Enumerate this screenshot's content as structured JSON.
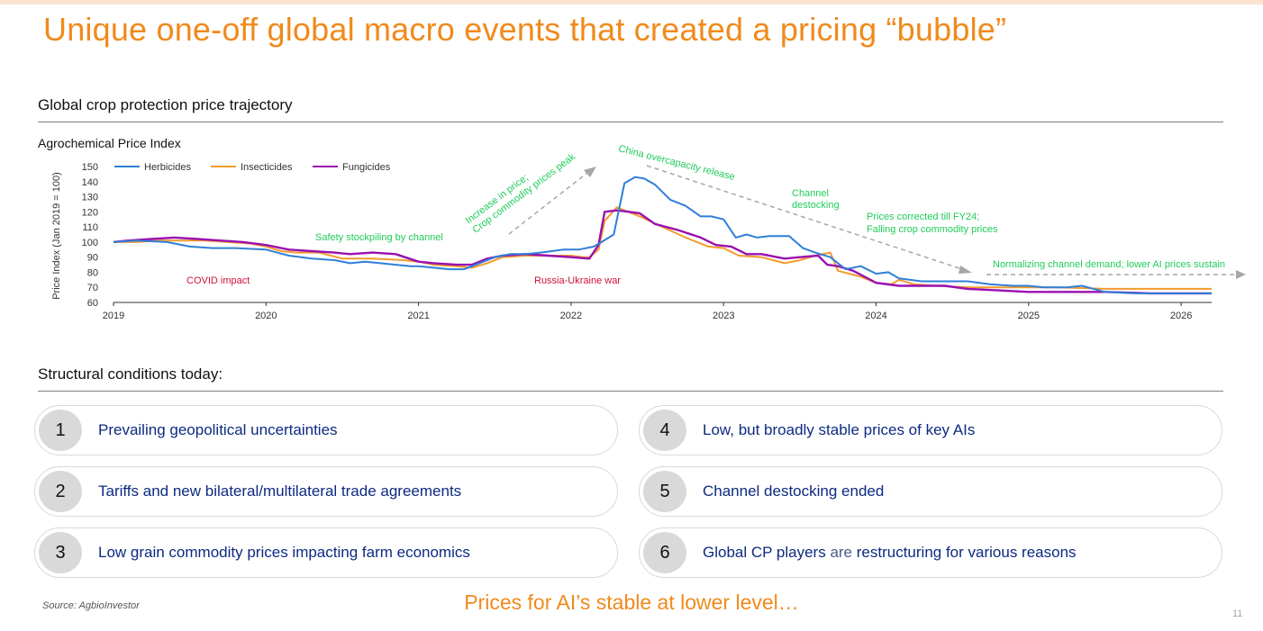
{
  "page": {
    "title": "Unique one-off global macro events that created a pricing “bubble”",
    "tagline": "Prices for AI’s stable at lower level…",
    "source": "Source: AgbioInvestor",
    "page_number": "11"
  },
  "sections": {
    "chart_section_title": "Global crop protection price trajectory",
    "conditions_title": "Structural conditions today:"
  },
  "colors": {
    "accent": "#f08a1c",
    "herbicides": "#2f7fd8",
    "insecticides": "#f29b2e",
    "fungicides": "#9a10b0",
    "annotation_green": "#1fcc5a",
    "annotation_red": "#d0103a",
    "card_text": "#0d2a80"
  },
  "chart_data": {
    "type": "line",
    "title": "Agrochemical Price Index",
    "ylabel": "Price Index (Jan 2019 = 100)",
    "xlabel": "",
    "ylim": [
      60,
      150
    ],
    "yticks": [
      60,
      70,
      80,
      90,
      100,
      110,
      120,
      130,
      140,
      150
    ],
    "xlim": [
      2019.0,
      2026.2
    ],
    "xticks": [
      "2019",
      "2020",
      "2021",
      "2022",
      "2023",
      "2024",
      "2025",
      "2026"
    ],
    "grid": false,
    "legend_position": "top-left",
    "series": [
      {
        "name": "Herbicides",
        "color": "#2f7fd8",
        "x": [
          2019.0,
          2019.15,
          2019.35,
          2019.5,
          2019.65,
          2019.8,
          2020.0,
          2020.15,
          2020.3,
          2020.45,
          2020.55,
          2020.65,
          2020.75,
          2020.85,
          2020.95,
          2021.0,
          2021.1,
          2021.2,
          2021.3,
          2021.4,
          2021.5,
          2021.6,
          2021.7,
          2021.8,
          2021.95,
          2022.05,
          2022.15,
          2022.2,
          2022.28,
          2022.35,
          2022.42,
          2022.48,
          2022.55,
          2022.65,
          2022.75,
          2022.85,
          2022.92,
          2023.0,
          2023.08,
          2023.15,
          2023.22,
          2023.3,
          2023.35,
          2023.43,
          2023.52,
          2023.6,
          2023.7,
          2023.8,
          2023.9,
          2024.0,
          2024.08,
          2024.15,
          2024.22,
          2024.3,
          2024.45,
          2024.6,
          2024.75,
          2024.9,
          2025.0,
          2025.1,
          2025.25,
          2025.35,
          2025.5,
          2025.7,
          2025.9,
          2026.0,
          2026.2
        ],
        "y": [
          100,
          101,
          100,
          97,
          96,
          96,
          95,
          91,
          89,
          88,
          86,
          87,
          86,
          85,
          84,
          84,
          83,
          82,
          82,
          86,
          90,
          92,
          92,
          93,
          95,
          95,
          97,
          100,
          105,
          139,
          143,
          142,
          138,
          128,
          124,
          117,
          117,
          115,
          103,
          105,
          103,
          104,
          104,
          104,
          96,
          93,
          90,
          82,
          84,
          79,
          80,
          76,
          75,
          74,
          74,
          74,
          72,
          71,
          71,
          70,
          70,
          71,
          67,
          66,
          66,
          66,
          66
        ]
      },
      {
        "name": "Insecticides",
        "color": "#f29b2e",
        "x": [
          2019.0,
          2019.15,
          2019.3,
          2019.45,
          2019.6,
          2019.75,
          2019.9,
          2020.0,
          2020.1,
          2020.2,
          2020.35,
          2020.5,
          2020.7,
          2020.9,
          2021.0,
          2021.1,
          2021.25,
          2021.35,
          2021.45,
          2021.55,
          2021.7,
          2021.8,
          2021.9,
          2022.0,
          2022.08,
          2022.12,
          2022.18,
          2022.22,
          2022.3,
          2022.45,
          2022.6,
          2022.75,
          2022.9,
          2023.0,
          2023.1,
          2023.25,
          2023.4,
          2023.5,
          2023.6,
          2023.7,
          2023.75,
          2023.9,
          2024.0,
          2024.1,
          2024.15,
          2024.25,
          2024.4,
          2024.6,
          2024.8,
          2025.0,
          2025.2,
          2025.5,
          2025.8,
          2026.0,
          2026.2
        ],
        "y": [
          100,
          100,
          101,
          101,
          101,
          100,
          99,
          97,
          94,
          93,
          93,
          89,
          89,
          88,
          87,
          85,
          84,
          83,
          86,
          90,
          91,
          91,
          91,
          91,
          90,
          90,
          95,
          114,
          123,
          117,
          110,
          103,
          97,
          96,
          91,
          90,
          86,
          88,
          91,
          93,
          81,
          77,
          73,
          72,
          75,
          72,
          71,
          70,
          70,
          70,
          70,
          69,
          69,
          69,
          69
        ]
      },
      {
        "name": "Fungicides",
        "color": "#9a10b0",
        "x": [
          2019.0,
          2019.1,
          2019.25,
          2019.4,
          2019.55,
          2019.7,
          2019.85,
          2020.0,
          2020.15,
          2020.3,
          2020.45,
          2020.55,
          2020.7,
          2020.85,
          2021.0,
          2021.1,
          2021.25,
          2021.35,
          2021.45,
          2021.55,
          2021.7,
          2021.85,
          2022.0,
          2022.12,
          2022.18,
          2022.22,
          2022.3,
          2022.38,
          2022.45,
          2022.55,
          2022.7,
          2022.85,
          2022.95,
          2023.05,
          2023.15,
          2023.25,
          2023.4,
          2023.5,
          2023.62,
          2023.68,
          2023.75,
          2023.85,
          2024.0,
          2024.15,
          2024.3,
          2024.45,
          2024.6,
          2024.8,
          2025.0,
          2025.2,
          2025.5,
          2025.8,
          2026.0,
          2026.2
        ],
        "y": [
          100,
          101,
          102,
          103,
          102,
          101,
          100,
          98,
          95,
          94,
          93,
          92,
          93,
          92,
          87,
          86,
          85,
          85,
          89,
          91,
          92,
          91,
          90,
          89,
          98,
          120,
          121,
          120,
          119,
          112,
          108,
          103,
          98,
          97,
          92,
          92,
          89,
          90,
          91,
          85,
          84,
          81,
          73,
          71,
          71,
          71,
          69,
          68,
          67,
          67,
          67,
          66,
          66,
          66
        ]
      }
    ],
    "annotations": [
      {
        "text": "COVID impact",
        "color": "red"
      },
      {
        "text": "Safety stockpiling by channel",
        "color": "green"
      },
      {
        "text": "Increase in price;",
        "color": "green"
      },
      {
        "text": "Crop commodity prices peak",
        "color": "green"
      },
      {
        "text": "Russia-Ukraine war",
        "color": "red"
      },
      {
        "text": "China overcapacity release",
        "color": "green"
      },
      {
        "text": "Channel",
        "color": "green"
      },
      {
        "text": "destocking",
        "color": "green"
      },
      {
        "text": "Prices corrected till FY24;",
        "color": "green"
      },
      {
        "text": "Falling crop commodity prices",
        "color": "green"
      },
      {
        "text": "Normalizing channel demand; lower AI prices sustain",
        "color": "green"
      }
    ]
  },
  "conditions": [
    {
      "num": "1",
      "text": "Prevailing geopolitical uncertainties"
    },
    {
      "num": "2",
      "text": "Tariffs and new bilateral/multilateral trade agreements"
    },
    {
      "num": "3",
      "text": "Low grain commodity prices impacting farm economics"
    },
    {
      "num": "4",
      "text": "Low, but broadly stable prices of key AIs"
    },
    {
      "num": "5",
      "text": "Channel destocking ended"
    },
    {
      "num": "6",
      "text_a": "Global CP players",
      "text_b": "are",
      "text_c": "restructuring for various reasons"
    }
  ]
}
